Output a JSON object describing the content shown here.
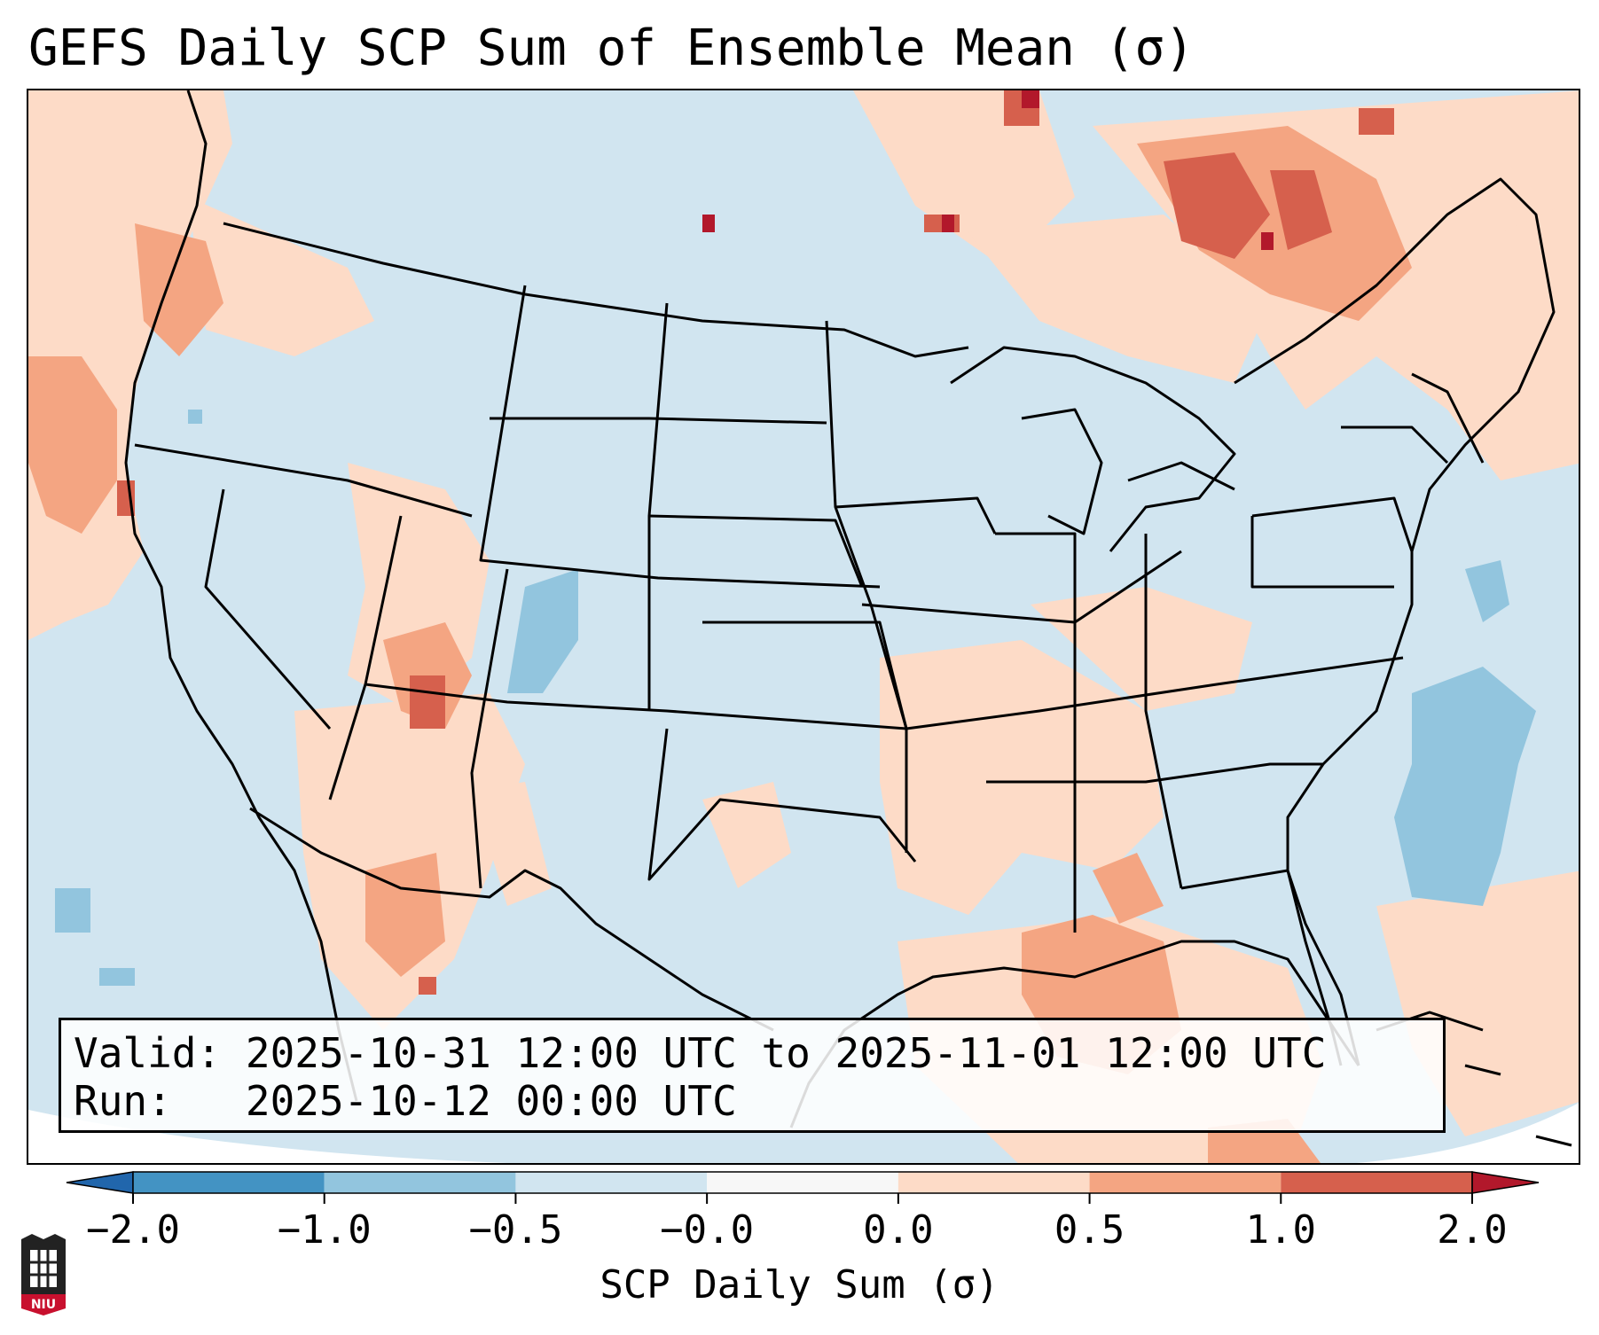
{
  "title": "GEFS Daily SCP Sum of Ensemble Mean (σ)",
  "info": {
    "valid_label": "Valid:",
    "valid_value": "2025-10-31 12:00 UTC to 2025-11-01 12:00 UTC",
    "run_label": "Run:  ",
    "run_value": "2025-10-12 00:00 UTC"
  },
  "colorbar": {
    "label": "SCP Daily Sum (σ)",
    "ticks": [
      "−2.0",
      "−1.0",
      "−0.5",
      "−0.0",
      "0.0",
      "0.5",
      "1.0",
      "2.0"
    ],
    "bins": [
      {
        "range": "< -2.0",
        "color": "#2166ac"
      },
      {
        "range": "-2.0 to -1.0",
        "color": "#4393c3"
      },
      {
        "range": "-1.0 to -0.5",
        "color": "#92c5de"
      },
      {
        "range": "-0.5 to -0.0",
        "color": "#d1e5f0"
      },
      {
        "range": "-0.0 to 0.0",
        "color": "#f7f7f7"
      },
      {
        "range": "0.0 to 0.5",
        "color": "#fddbc7"
      },
      {
        "range": "0.5 to 1.0",
        "color": "#f4a582"
      },
      {
        "range": "1.0 to 2.0",
        "color": "#d6604d"
      },
      {
        "range": "> 2.0",
        "color": "#b2182b"
      }
    ]
  },
  "map": {
    "region": "Contiguous United States",
    "ocean_color": "#d1e5f0",
    "land_base_color": "#d1e5f0",
    "boundary_color": "#000000"
  },
  "logo": {
    "text": "NIU",
    "color": "#c8102e"
  }
}
